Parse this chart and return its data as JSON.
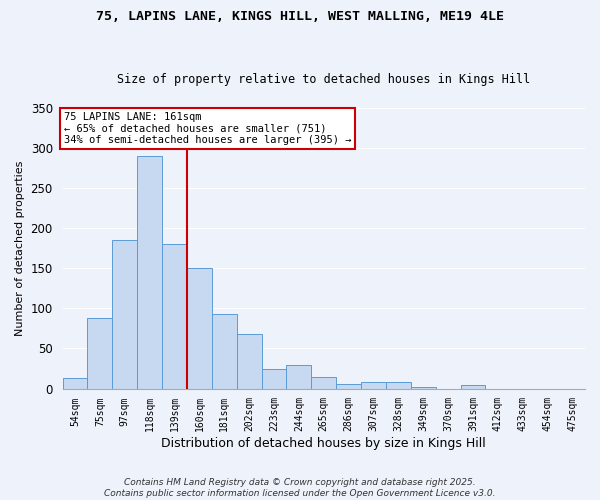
{
  "title": "75, LAPINS LANE, KINGS HILL, WEST MALLING, ME19 4LE",
  "subtitle": "Size of property relative to detached houses in Kings Hill",
  "xlabel": "Distribution of detached houses by size in Kings Hill",
  "ylabel": "Number of detached properties",
  "bar_labels": [
    "54sqm",
    "75sqm",
    "97sqm",
    "118sqm",
    "139sqm",
    "160sqm",
    "181sqm",
    "202sqm",
    "223sqm",
    "244sqm",
    "265sqm",
    "286sqm",
    "307sqm",
    "328sqm",
    "349sqm",
    "370sqm",
    "391sqm",
    "412sqm",
    "433sqm",
    "454sqm",
    "475sqm"
  ],
  "bar_values": [
    13,
    88,
    185,
    290,
    180,
    150,
    93,
    68,
    25,
    30,
    14,
    6,
    8,
    8,
    2,
    0,
    5,
    0,
    0,
    0,
    0
  ],
  "bar_color": "#c6d9f0",
  "bar_edge_color": "#5b9bd5",
  "vline_color": "#cc0000",
  "vline_index": 5,
  "annotation_title": "75 LAPINS LANE: 161sqm",
  "annotation_line1": "← 65% of detached houses are smaller (751)",
  "annotation_line2": "34% of semi-detached houses are larger (395) →",
  "annotation_box_color": "#ffffff",
  "annotation_box_edge": "#cc0000",
  "ylim": [
    0,
    350
  ],
  "background_color": "#eef2fb",
  "grid_color": "#ffffff",
  "footer": "Contains HM Land Registry data © Crown copyright and database right 2025.\nContains public sector information licensed under the Open Government Licence v3.0."
}
